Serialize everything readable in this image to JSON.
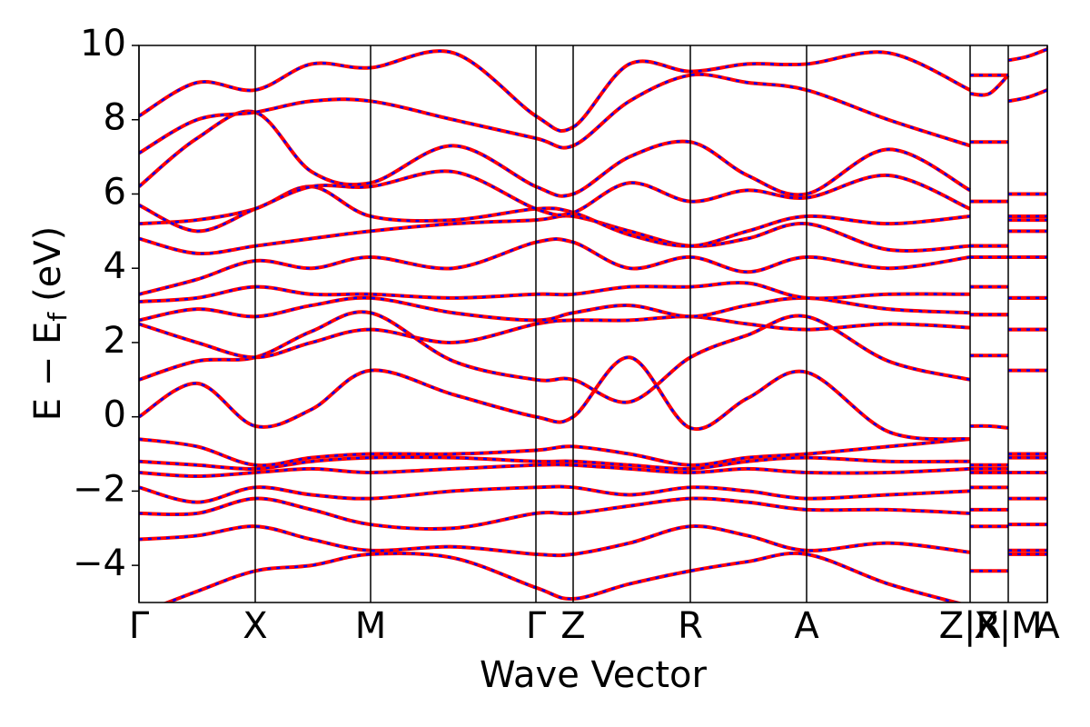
{
  "chart_data": {
    "type": "line",
    "xlabel": "Wave Vector",
    "ylabel": {
      "main": "E − E",
      "sub": "f",
      "unit": "(eV)"
    },
    "color": "#ff0000",
    "overlay_color": "#0000ff",
    "xlim": [
      0,
      1
    ],
    "xticks": [
      {
        "value": 0,
        "label": "Γ"
      },
      {
        "value": 0.128,
        "label": "X"
      },
      {
        "value": 0.255,
        "label": "M"
      },
      {
        "value": 0.437,
        "label": "Γ"
      },
      {
        "value": 0.478,
        "label": "Z"
      },
      {
        "value": 0.607,
        "label": "R"
      },
      {
        "value": 0.735,
        "label": "A"
      },
      {
        "value": 0.915,
        "label": "Z|R"
      },
      {
        "value": 0.957,
        "label": "X|M"
      },
      {
        "value": 1,
        "label": "A"
      }
    ],
    "ylim": [
      -5,
      10
    ],
    "yticks": [
      {
        "value": -4,
        "label": "−4"
      },
      {
        "value": -2,
        "label": "−2"
      },
      0,
      2,
      4,
      6,
      8,
      10
    ],
    "x": [
      0,
      0.064,
      0.128,
      0.19,
      0.255,
      0.346,
      0.437,
      0.478,
      0.54,
      0.607,
      0.67,
      0.735,
      0.825,
      0.915,
      0.915,
      0.915,
      0.936,
      0.957,
      0.957,
      0.957,
      0.978,
      1
    ],
    "series": [
      {
        "values": [
          -5.3,
          -4.7,
          -4.15,
          -4.0,
          -3.7,
          -3.8,
          -4.6,
          -4.9,
          -4.5,
          -4.15,
          -3.9,
          -3.7,
          -4.5,
          -5.1,
          null,
          -4.15,
          -4.15,
          -4.15,
          null,
          -3.7,
          -3.7,
          -3.7
        ]
      },
      {
        "values": [
          -3.3,
          -3.2,
          -2.95,
          -3.3,
          -3.6,
          -3.5,
          -3.7,
          -3.7,
          -3.4,
          -2.95,
          -3.2,
          -3.6,
          -3.4,
          -3.65,
          null,
          -2.95,
          -2.95,
          -2.95,
          null,
          -3.6,
          -3.6,
          -3.6
        ]
      },
      {
        "values": [
          -2.6,
          -2.6,
          -2.2,
          -2.5,
          -2.9,
          -3.0,
          -2.6,
          -2.6,
          -2.4,
          -2.2,
          -2.3,
          -2.5,
          -2.5,
          -2.6,
          null,
          -2.5,
          -2.5,
          -2.5,
          null,
          -2.9,
          -2.9,
          -2.9
        ]
      },
      {
        "values": [
          -1.9,
          -2.3,
          -1.9,
          -2.1,
          -2.2,
          -2.0,
          -1.9,
          -1.9,
          -2.1,
          -1.9,
          -2.0,
          -2.2,
          -2.1,
          -2.0,
          null,
          -1.9,
          -1.9,
          -1.9,
          null,
          -2.2,
          -2.2,
          -2.2
        ]
      },
      {
        "values": [
          -1.5,
          -1.6,
          -1.5,
          -1.4,
          -1.5,
          -1.4,
          -1.3,
          -1.3,
          -1.4,
          -1.5,
          -1.4,
          -1.5,
          -1.5,
          -1.4,
          null,
          -1.5,
          -1.5,
          -1.5,
          null,
          -1.5,
          -1.5,
          -1.5
        ]
      },
      {
        "values": [
          -1.2,
          -1.3,
          -1.4,
          -1.2,
          -1.1,
          -1.1,
          -1.2,
          -1.2,
          -1.3,
          -1.4,
          -1.2,
          -1.1,
          -1.2,
          -1.2,
          null,
          -1.4,
          -1.4,
          -1.4,
          null,
          -1.1,
          -1.1,
          -1.1
        ]
      },
      {
        "values": [
          -0.6,
          -0.8,
          -1.3,
          -1.1,
          -1.0,
          -1.0,
          -0.9,
          -0.8,
          -1.0,
          -1.3,
          -1.1,
          -1.0,
          -0.8,
          -0.6,
          null,
          -1.3,
          -1.3,
          -1.3,
          null,
          -1.0,
          -1.0,
          -1.0
        ]
      },
      {
        "values": [
          0.0,
          0.9,
          -0.25,
          0.2,
          1.25,
          0.6,
          0.0,
          0.0,
          1.6,
          -0.3,
          0.5,
          1.2,
          -0.4,
          -0.6,
          null,
          -0.25,
          -0.25,
          -0.3,
          null,
          1.25,
          1.25,
          1.25
        ]
      },
      {
        "values": [
          1.0,
          1.5,
          1.6,
          2.3,
          2.8,
          1.5,
          1.0,
          1.0,
          0.4,
          1.6,
          2.2,
          2.7,
          1.5,
          1.0,
          null,
          1.65,
          1.65,
          1.65,
          null,
          2.35,
          2.35,
          2.35
        ]
      },
      {
        "values": [
          2.5,
          2.0,
          1.6,
          2.0,
          2.35,
          2.0,
          2.5,
          2.6,
          2.6,
          2.7,
          2.5,
          2.35,
          2.5,
          2.4,
          null,
          2.75,
          2.75,
          2.75,
          null,
          2.35,
          2.35,
          2.35
        ]
      },
      {
        "values": [
          2.6,
          2.9,
          2.7,
          3.0,
          3.2,
          2.8,
          2.6,
          2.8,
          3.0,
          2.7,
          3.0,
          3.2,
          2.9,
          2.8,
          null,
          2.75,
          2.75,
          2.75,
          null,
          3.2,
          3.2,
          3.2
        ]
      },
      {
        "values": [
          3.1,
          3.2,
          3.5,
          3.3,
          3.3,
          3.2,
          3.3,
          3.3,
          3.5,
          3.5,
          3.6,
          3.2,
          3.3,
          3.3,
          null,
          3.5,
          3.5,
          3.5,
          null,
          3.2,
          3.2,
          3.2
        ]
      },
      {
        "values": [
          3.3,
          3.7,
          4.2,
          4.0,
          4.3,
          4.0,
          4.7,
          4.7,
          4.0,
          4.3,
          3.9,
          4.3,
          4.0,
          4.3,
          null,
          4.3,
          4.3,
          4.3,
          null,
          4.3,
          4.3,
          4.3
        ]
      },
      {
        "values": [
          4.8,
          4.4,
          4.6,
          4.8,
          5.0,
          5.2,
          5.3,
          5.4,
          5.0,
          4.6,
          4.8,
          5.2,
          4.5,
          4.6,
          null,
          4.6,
          4.6,
          4.6,
          null,
          5.0,
          5.0,
          5.0
        ]
      },
      {
        "values": [
          5.2,
          5.3,
          5.6,
          6.2,
          5.4,
          5.3,
          5.6,
          5.5,
          4.9,
          4.6,
          5.0,
          5.4,
          5.2,
          5.4,
          null,
          4.6,
          4.6,
          4.6,
          null,
          5.3,
          5.3,
          5.3
        ]
      },
      {
        "values": [
          5.7,
          5.0,
          5.6,
          6.2,
          6.2,
          6.6,
          5.6,
          5.5,
          6.3,
          5.8,
          6.1,
          5.9,
          6.5,
          5.6,
          null,
          5.8,
          5.8,
          5.8,
          null,
          5.4,
          5.4,
          5.4
        ]
      },
      {
        "values": [
          6.2,
          7.5,
          8.2,
          6.6,
          6.3,
          7.3,
          6.2,
          6.0,
          7.0,
          7.4,
          6.5,
          6.0,
          7.2,
          6.1,
          null,
          7.4,
          7.4,
          7.4,
          null,
          6.0,
          6.0,
          6.0
        ]
      },
      {
        "values": [
          7.1,
          8.0,
          8.2,
          8.5,
          8.5,
          8.0,
          7.5,
          7.3,
          8.5,
          9.2,
          9.0,
          8.8,
          8.0,
          7.3,
          null,
          8.7,
          8.7,
          9.2,
          null,
          8.5,
          8.6,
          8.8
        ]
      },
      {
        "values": [
          8.1,
          9.0,
          8.8,
          9.5,
          9.4,
          9.8,
          8.1,
          7.8,
          9.5,
          9.3,
          9.5,
          9.5,
          9.8,
          8.8,
          null,
          9.2,
          9.2,
          9.2,
          null,
          9.6,
          9.7,
          9.9
        ]
      }
    ]
  }
}
